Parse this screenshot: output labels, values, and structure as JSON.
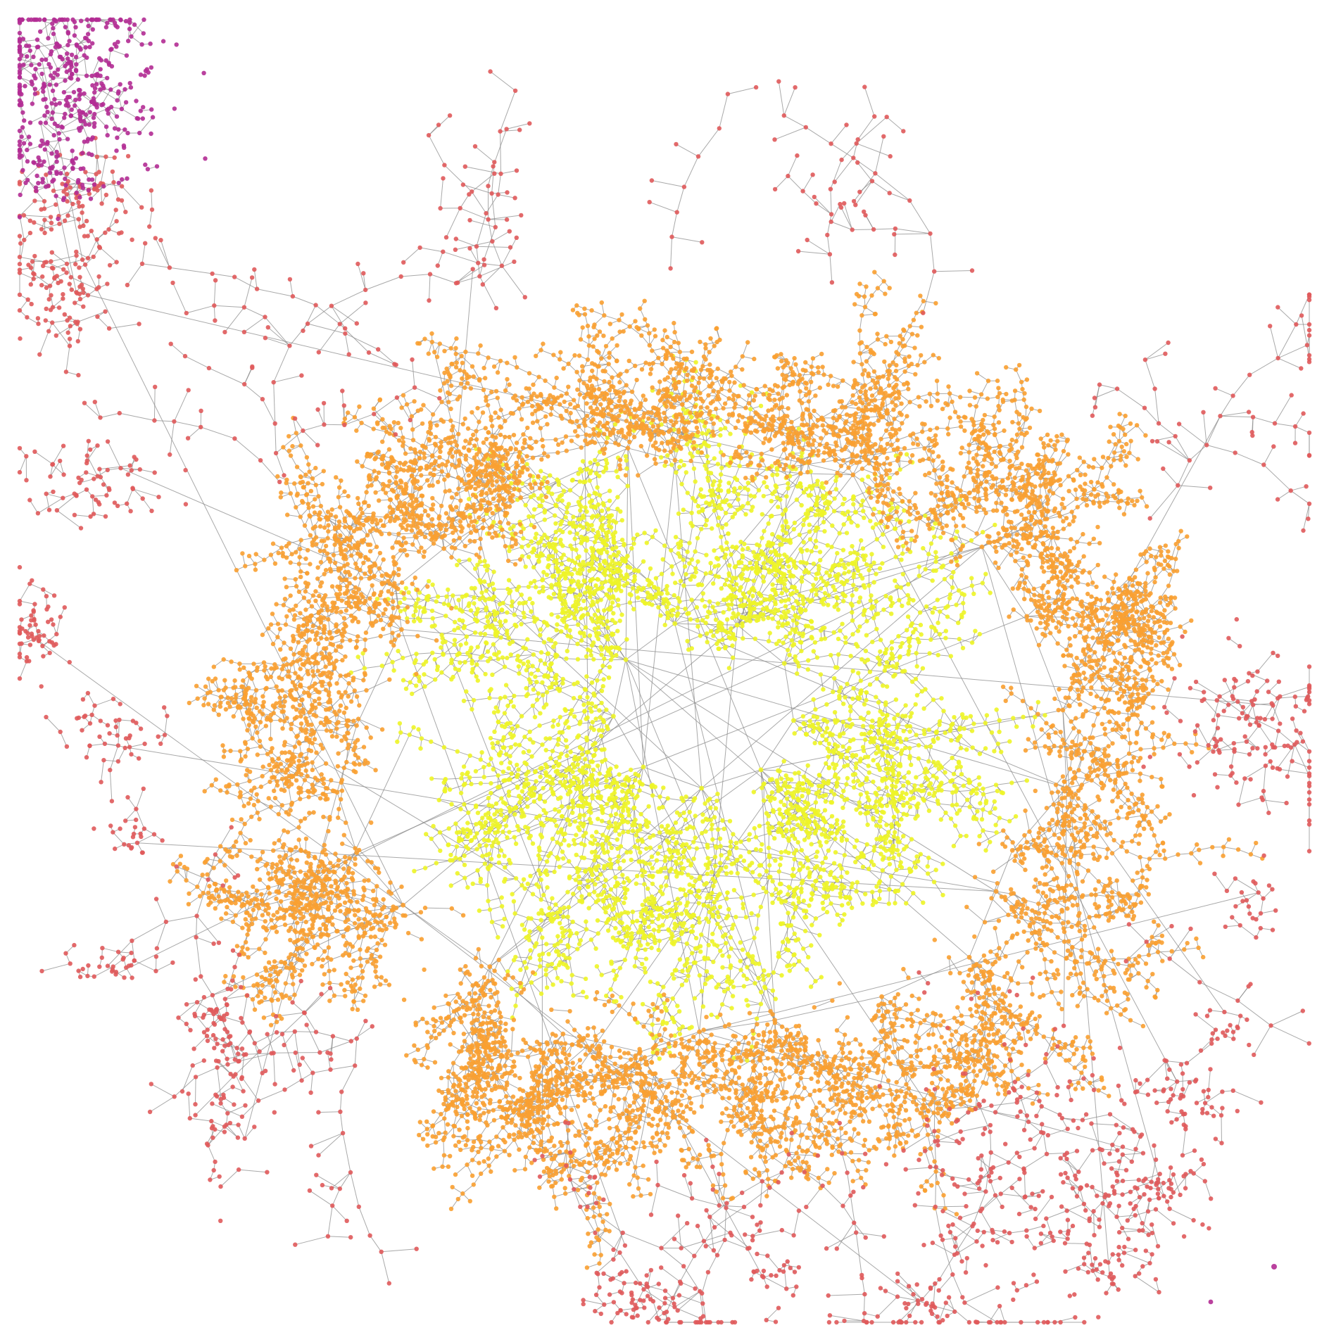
{
  "diagram": {
    "type": "network-graph",
    "layout": "force-directed",
    "edge_color": "#8c8c8c",
    "node_opacity": 0.9,
    "legend": "none",
    "communities": [
      {
        "id": "core",
        "color": "#eef527",
        "shape": "radial-petals",
        "density": "very-high"
      },
      {
        "id": "ring",
        "color": "#f9a031",
        "shape": "ring-around-core",
        "density": "high"
      },
      {
        "id": "outer",
        "color": "#e05a5b",
        "shape": "scattered-clusters",
        "density": "medium"
      },
      {
        "id": "corner",
        "color": "#b22c93",
        "shape": "dense-corner-cluster",
        "density": "high"
      }
    ]
  }
}
